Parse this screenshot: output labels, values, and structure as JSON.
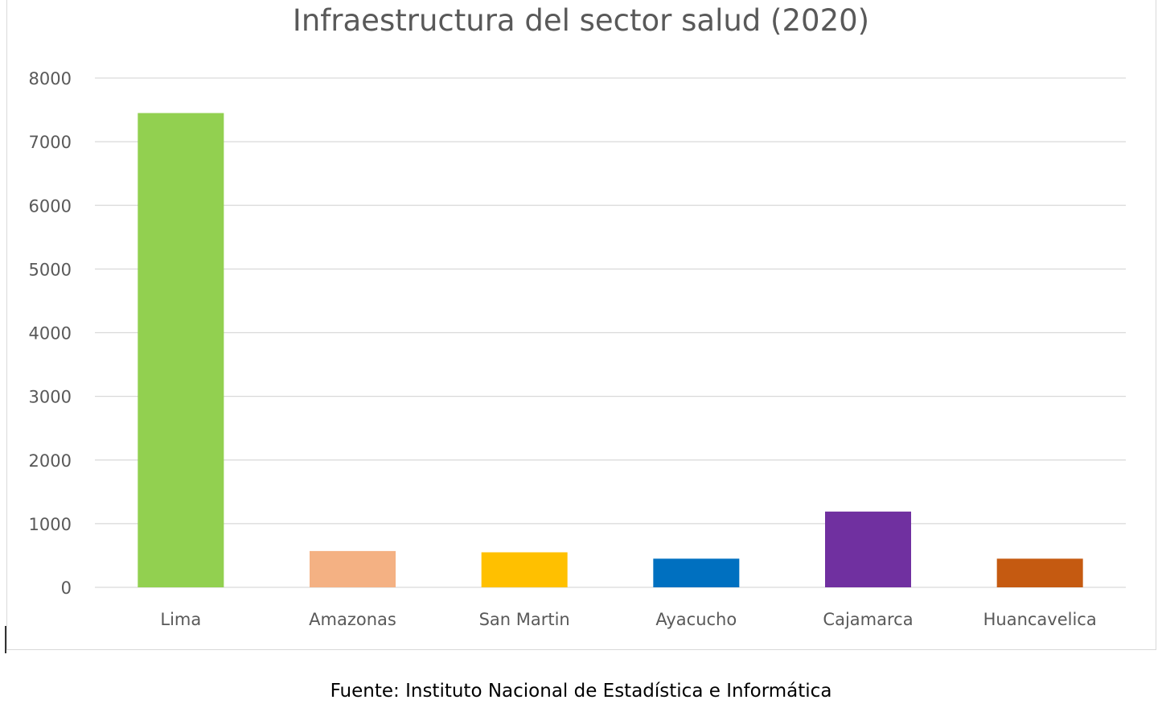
{
  "chart_data": {
    "type": "bar",
    "title": "Infraestructura del sector salud (2020)",
    "xlabel": "",
    "ylabel": "",
    "categories": [
      "Lima",
      "Amazonas",
      "San Martin",
      "Ayacucho",
      "Cajamarca",
      "Huancavelica"
    ],
    "values": [
      7450,
      570,
      550,
      450,
      1190,
      450
    ],
    "colors": [
      "#92d050",
      "#f4b183",
      "#ffc000",
      "#0070c0",
      "#7030a0",
      "#c55a11"
    ],
    "ylim": [
      0,
      8000
    ],
    "yticks": [
      "0",
      "1000",
      "2000",
      "3000",
      "4000",
      "5000",
      "6000",
      "7000",
      "8000"
    ],
    "grid": true,
    "legend": "none"
  },
  "source_note": "Fuente: Instituto Nacional de Estadística e Informática"
}
